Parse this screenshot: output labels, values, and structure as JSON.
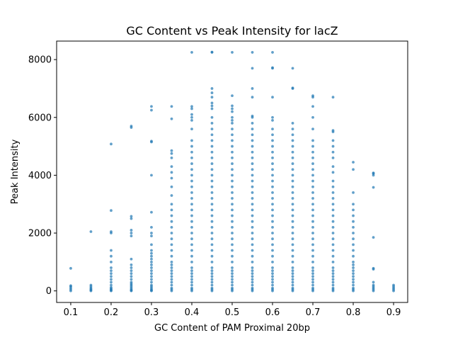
{
  "chart_data": {
    "type": "scatter",
    "title": "GC Content vs Peak Intensity for lacZ",
    "xlabel": "GC Content of PAM Proximal 20bp",
    "ylabel": "Peak Intensity",
    "xlim": [
      0.065,
      0.935
    ],
    "ylim": [
      -400,
      8640
    ],
    "xticks": [
      0.1,
      0.2,
      0.3,
      0.4,
      0.5,
      0.6,
      0.7,
      0.8,
      0.9
    ],
    "xtick_labels": [
      "0.1",
      "0.2",
      "0.3",
      "0.4",
      "0.5",
      "0.6",
      "0.7",
      "0.8",
      "0.9"
    ],
    "yticks": [
      0,
      2000,
      4000,
      6000,
      8000
    ],
    "ytick_labels": [
      "0",
      "2000",
      "4000",
      "6000",
      "8000"
    ],
    "grid": false,
    "marker_color": "#1f77b4",
    "columns": [
      {
        "x": 0.1,
        "y": [
          0,
          50,
          100,
          150,
          180,
          780
        ]
      },
      {
        "x": 0.15,
        "y": [
          0,
          30,
          60,
          100,
          150,
          200,
          2050
        ]
      },
      {
        "x": 0.2,
        "y": [
          0,
          20,
          50,
          80,
          120,
          200,
          300,
          400,
          500,
          600,
          700,
          800,
          1000,
          1200,
          1400,
          2000,
          2050,
          2780,
          5080
        ]
      },
      {
        "x": 0.25,
        "y": [
          0,
          20,
          50,
          100,
          150,
          200,
          250,
          300,
          400,
          500,
          600,
          700,
          800,
          900,
          1100,
          1900,
          2000,
          2100,
          2500,
          2580,
          5650,
          5700
        ]
      },
      {
        "x": 0.3,
        "y": [
          0,
          20,
          50,
          100,
          150,
          200,
          300,
          400,
          500,
          600,
          700,
          800,
          900,
          1000,
          1100,
          1200,
          1300,
          1400,
          1600,
          1900,
          2000,
          2200,
          2720,
          4000,
          5150,
          5180,
          6250,
          6380
        ]
      },
      {
        "x": 0.35,
        "y": [
          0,
          50,
          100,
          200,
          300,
          400,
          500,
          600,
          700,
          800,
          900,
          1000,
          1200,
          1400,
          1600,
          1800,
          2000,
          2200,
          2400,
          2600,
          2800,
          3000,
          3300,
          3600,
          3900,
          4100,
          4300,
          4600,
          4750,
          4850,
          5950,
          6380
        ]
      },
      {
        "x": 0.4,
        "y": [
          0,
          50,
          100,
          200,
          300,
          400,
          500,
          600,
          700,
          800,
          1000,
          1200,
          1400,
          1600,
          1800,
          2000,
          2200,
          2400,
          2600,
          2800,
          3000,
          3200,
          3400,
          3600,
          3800,
          4000,
          4200,
          4400,
          4600,
          4800,
          5000,
          5200,
          5600,
          5900,
          6000,
          6100,
          6300,
          6380,
          8250
        ]
      },
      {
        "x": 0.45,
        "y": [
          0,
          50,
          100,
          200,
          300,
          400,
          500,
          600,
          700,
          800,
          1000,
          1200,
          1400,
          1600,
          1800,
          2000,
          2200,
          2400,
          2600,
          2800,
          3000,
          3200,
          3400,
          3600,
          3800,
          4000,
          4200,
          4400,
          4600,
          4800,
          5000,
          5200,
          5400,
          5600,
          5800,
          6000,
          6300,
          6400,
          6500,
          6700,
          6850,
          7000,
          8250,
          8260
        ]
      },
      {
        "x": 0.5,
        "y": [
          0,
          50,
          100,
          200,
          300,
          400,
          500,
          600,
          700,
          800,
          1000,
          1200,
          1400,
          1600,
          1800,
          2000,
          2200,
          2400,
          2600,
          2800,
          3000,
          3200,
          3400,
          3600,
          3800,
          4000,
          4200,
          4400,
          4600,
          4800,
          5000,
          5200,
          5400,
          5600,
          5800,
          5900,
          6000,
          6200,
          6300,
          6400,
          6750,
          8250
        ]
      },
      {
        "x": 0.55,
        "y": [
          0,
          50,
          100,
          200,
          300,
          400,
          500,
          600,
          700,
          800,
          1000,
          1200,
          1400,
          1600,
          1800,
          2000,
          2200,
          2400,
          2600,
          2800,
          3000,
          3200,
          3400,
          3600,
          3800,
          4000,
          4200,
          4400,
          4600,
          4800,
          5000,
          5200,
          5400,
          5600,
          5800,
          6000,
          6050,
          6700,
          7000,
          7700,
          8250
        ]
      },
      {
        "x": 0.6,
        "y": [
          0,
          50,
          100,
          200,
          300,
          400,
          500,
          600,
          700,
          800,
          1000,
          1200,
          1400,
          1600,
          1800,
          2000,
          2200,
          2400,
          2600,
          2800,
          3000,
          3200,
          3400,
          3600,
          3800,
          4000,
          4200,
          4400,
          4600,
          4800,
          5000,
          5200,
          5400,
          5600,
          5900,
          6000,
          6700,
          7700,
          7720,
          8250
        ]
      },
      {
        "x": 0.65,
        "y": [
          0,
          50,
          100,
          200,
          300,
          400,
          500,
          600,
          700,
          800,
          1000,
          1200,
          1400,
          1600,
          1800,
          2000,
          2200,
          2400,
          2600,
          2800,
          3000,
          3200,
          3400,
          3600,
          3800,
          4000,
          4200,
          4400,
          4600,
          4800,
          5000,
          5200,
          5400,
          5600,
          5800,
          7000,
          7020,
          7700
        ]
      },
      {
        "x": 0.7,
        "y": [
          0,
          50,
          100,
          200,
          300,
          400,
          500,
          600,
          700,
          800,
          1000,
          1200,
          1400,
          1600,
          1800,
          2000,
          2200,
          2400,
          2600,
          2800,
          3000,
          3200,
          3400,
          3600,
          3800,
          4000,
          4200,
          4400,
          4600,
          4800,
          5000,
          5200,
          5600,
          6000,
          6380,
          6700,
          6750
        ]
      },
      {
        "x": 0.75,
        "y": [
          0,
          50,
          100,
          200,
          300,
          400,
          500,
          600,
          700,
          800,
          1000,
          1200,
          1400,
          1600,
          1800,
          2000,
          2200,
          2400,
          2600,
          2800,
          3000,
          3200,
          3400,
          3600,
          3800,
          4100,
          4300,
          4600,
          4800,
          5000,
          5200,
          5500,
          5550,
          6700
        ]
      },
      {
        "x": 0.8,
        "y": [
          0,
          50,
          100,
          200,
          300,
          400,
          500,
          600,
          700,
          800,
          900,
          1000,
          1200,
          1400,
          1600,
          1800,
          2000,
          2200,
          2400,
          2600,
          2800,
          3000,
          3400,
          4200,
          4450
        ]
      },
      {
        "x": 0.85,
        "y": [
          0,
          50,
          100,
          150,
          200,
          300,
          750,
          780,
          1850,
          3580,
          4000,
          4060,
          4080
        ]
      },
      {
        "x": 0.9,
        "y": [
          0,
          50,
          100,
          150,
          200
        ]
      }
    ]
  }
}
